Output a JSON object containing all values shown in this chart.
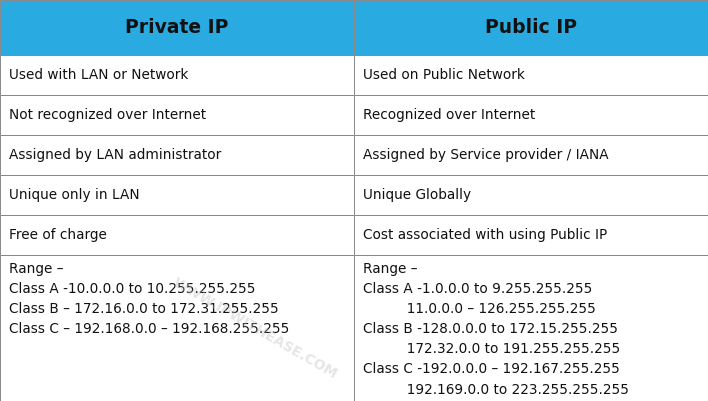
{
  "header_bg": "#29ABE2",
  "header_text_color": "#111111",
  "header_font_size": 13.5,
  "border_color": "#888888",
  "text_color": "#111111",
  "body_font_size": 9.8,
  "headers": [
    "Private IP",
    "Public IP"
  ],
  "rows": [
    [
      "Used with LAN or Network",
      "Used on Public Network"
    ],
    [
      "Not recognized over Internet",
      "Recognized over Internet"
    ],
    [
      "Assigned by LAN administrator",
      "Assigned by Service provider / IANA"
    ],
    [
      "Unique only in LAN",
      "Unique Globally"
    ],
    [
      "Free of charge",
      "Cost associated with using Public IP"
    ],
    [
      "Range –\nClass A -10.0.0.0 to 10.255.255.255\nClass B – 172.16.0.0 to 172.31.255.255\nClass C – 192.168.0.0 – 192.168.255.255",
      "Range –\nClass A -1.0.0.0 to 9.255.255.255\n          11.0.0.0 – 126.255.255.255\nClass B -128.0.0.0 to 172.15.255.255\n          172.32.0.0 to 191.255.255.255\nClass C -192.0.0.0 – 192.167.255.255\n          192.169.0.0 to 223.255.255.255"
    ]
  ],
  "watermark_text": "WWW.IPWITHEASE.COM",
  "figsize": [
    7.08,
    4.01
  ],
  "dpi": 100
}
